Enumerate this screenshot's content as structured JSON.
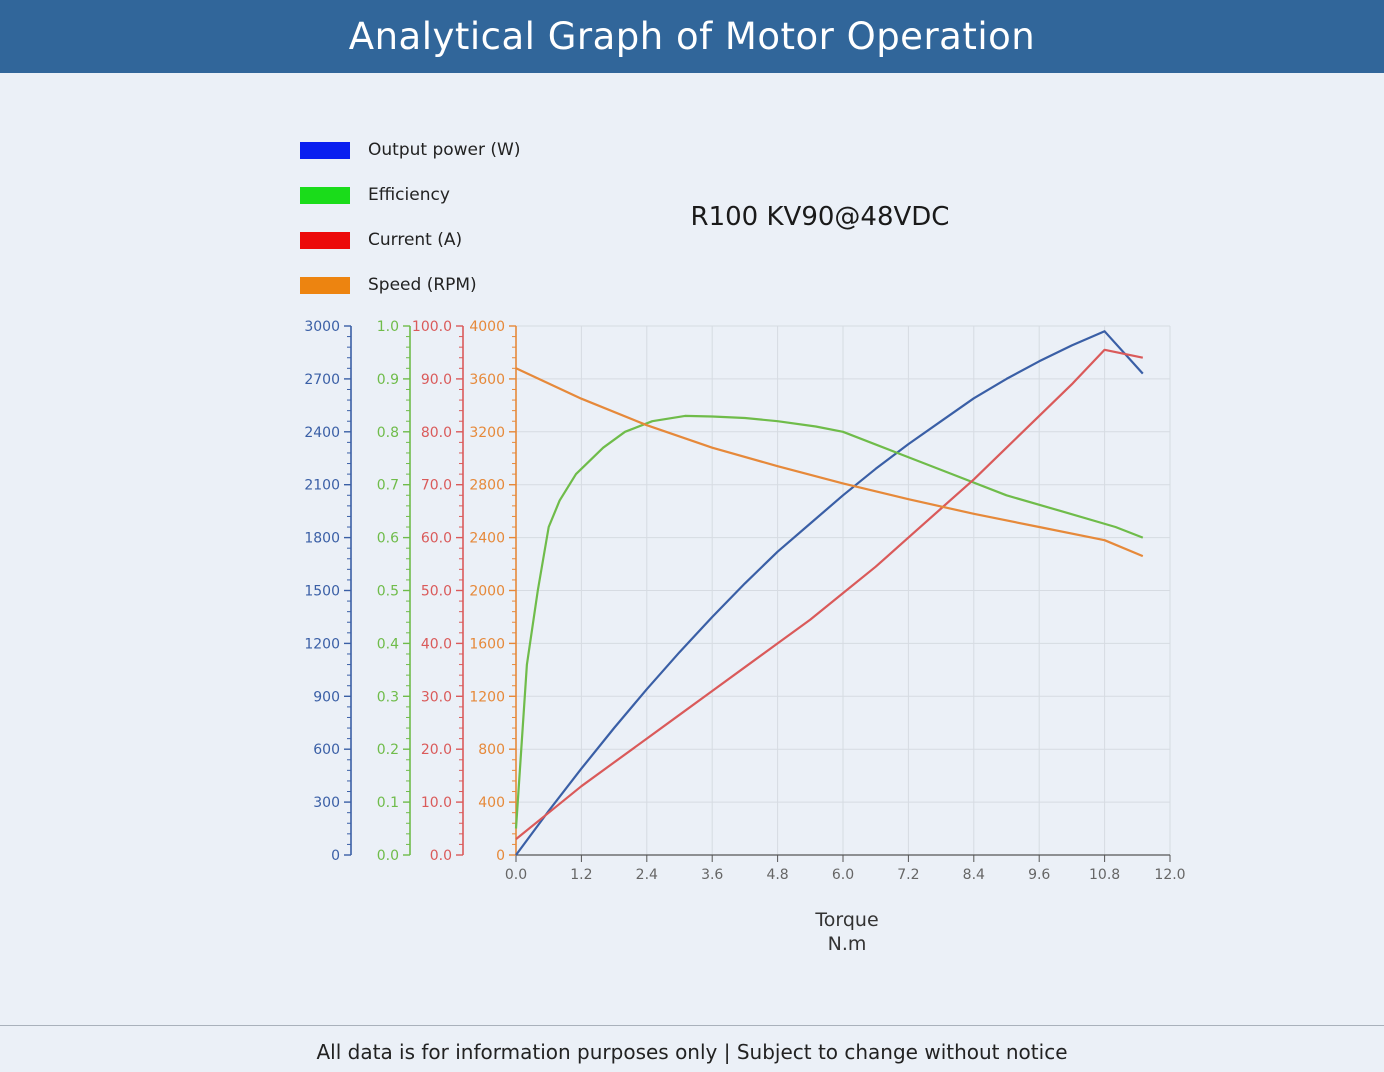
{
  "header": {
    "title": "Analytical Graph of Motor Operation"
  },
  "footer": {
    "text": "All data is for information purposes only | Subject to change without notice"
  },
  "colors": {
    "header_bg": "#31669a",
    "page_bg": "#ebf0f7",
    "power": "#3a5fa6",
    "efficiency": "#6fbc4a",
    "current": "#da5a5a",
    "speed": "#e6893a",
    "legend_power": "#0a1ff0",
    "legend_efficiency": "#1adc1a",
    "legend_current": "#ec0a0a",
    "legend_speed": "#ed8410"
  },
  "chart_data": {
    "type": "line",
    "title": "R100 KV90@48VDC",
    "xlabel": "Torque",
    "xunit": "N.m",
    "xlim": [
      0,
      12
    ],
    "x_ticks": [
      "0.0",
      "1.2",
      "2.4",
      "3.6",
      "4.8",
      "6.0",
      "7.2",
      "8.4",
      "9.6",
      "10.8",
      "12.0"
    ],
    "grid": true,
    "legend_position": "top-left",
    "axes": [
      {
        "series": "Output power (W)",
        "ylim": [
          0,
          3000
        ],
        "ticks": [
          "0",
          "300",
          "600",
          "900",
          "1200",
          "1500",
          "1800",
          "2100",
          "2400",
          "2700",
          "3000"
        ]
      },
      {
        "series": "Efficiency",
        "ylim": [
          0,
          1
        ],
        "ticks": [
          "0.0",
          "0.1",
          "0.2",
          "0.3",
          "0.4",
          "0.5",
          "0.6",
          "0.7",
          "0.8",
          "0.9",
          "1.0"
        ]
      },
      {
        "series": "Current (A)",
        "ylim": [
          0,
          100
        ],
        "ticks": [
          "0.0",
          "10.0",
          "20.0",
          "30.0",
          "40.0",
          "50.0",
          "60.0",
          "70.0",
          "80.0",
          "90.0",
          "100.0"
        ]
      },
      {
        "series": "Speed (RPM)",
        "ylim": [
          0,
          4000
        ],
        "ticks": [
          "0",
          "400",
          "800",
          "1200",
          "1600",
          "2000",
          "2400",
          "2800",
          "3200",
          "3600",
          "4000"
        ]
      }
    ],
    "series": [
      {
        "name": "Output power (W)",
        "x": [
          0.0,
          0.6,
          1.2,
          1.8,
          2.4,
          3.0,
          3.6,
          4.2,
          4.8,
          5.4,
          6.0,
          6.6,
          7.2,
          7.8,
          8.4,
          9.0,
          9.6,
          10.2,
          10.8,
          11.5
        ],
        "values": [
          0,
          250,
          490,
          720,
          940,
          1150,
          1350,
          1540,
          1720,
          1880,
          2040,
          2190,
          2330,
          2460,
          2590,
          2700,
          2800,
          2890,
          2970,
          2730
        ]
      },
      {
        "name": "Efficiency",
        "x": [
          0.0,
          0.2,
          0.4,
          0.6,
          0.8,
          1.1,
          1.6,
          2.0,
          2.5,
          3.1,
          3.6,
          4.2,
          4.8,
          5.5,
          6.0,
          7.0,
          8.0,
          9.0,
          10.0,
          11.0,
          11.5
        ],
        "values": [
          0.05,
          0.36,
          0.5,
          0.62,
          0.67,
          0.72,
          0.77,
          0.8,
          0.82,
          0.83,
          0.829,
          0.826,
          0.82,
          0.81,
          0.8,
          0.76,
          0.72,
          0.68,
          0.65,
          0.62,
          0.6
        ]
      },
      {
        "name": "Current (A)",
        "x": [
          0.0,
          0.6,
          1.2,
          1.8,
          2.4,
          3.0,
          3.6,
          4.2,
          4.8,
          5.4,
          6.0,
          6.6,
          7.2,
          7.8,
          8.4,
          9.0,
          9.6,
          10.2,
          10.8,
          11.5
        ],
        "values": [
          3,
          8,
          13,
          17.5,
          22,
          26.5,
          31,
          35.5,
          40,
          44.5,
          49.5,
          54.5,
          60,
          65.5,
          71,
          77,
          83,
          89,
          95.5,
          94
        ]
      },
      {
        "name": "Speed (RPM)",
        "x": [
          0.0,
          1.2,
          2.4,
          3.6,
          4.8,
          6.0,
          7.2,
          8.4,
          9.6,
          10.8,
          11.5
        ],
        "values": [
          3680,
          3450,
          3250,
          3080,
          2940,
          2810,
          2690,
          2580,
          2480,
          2380,
          2260
        ]
      }
    ]
  }
}
